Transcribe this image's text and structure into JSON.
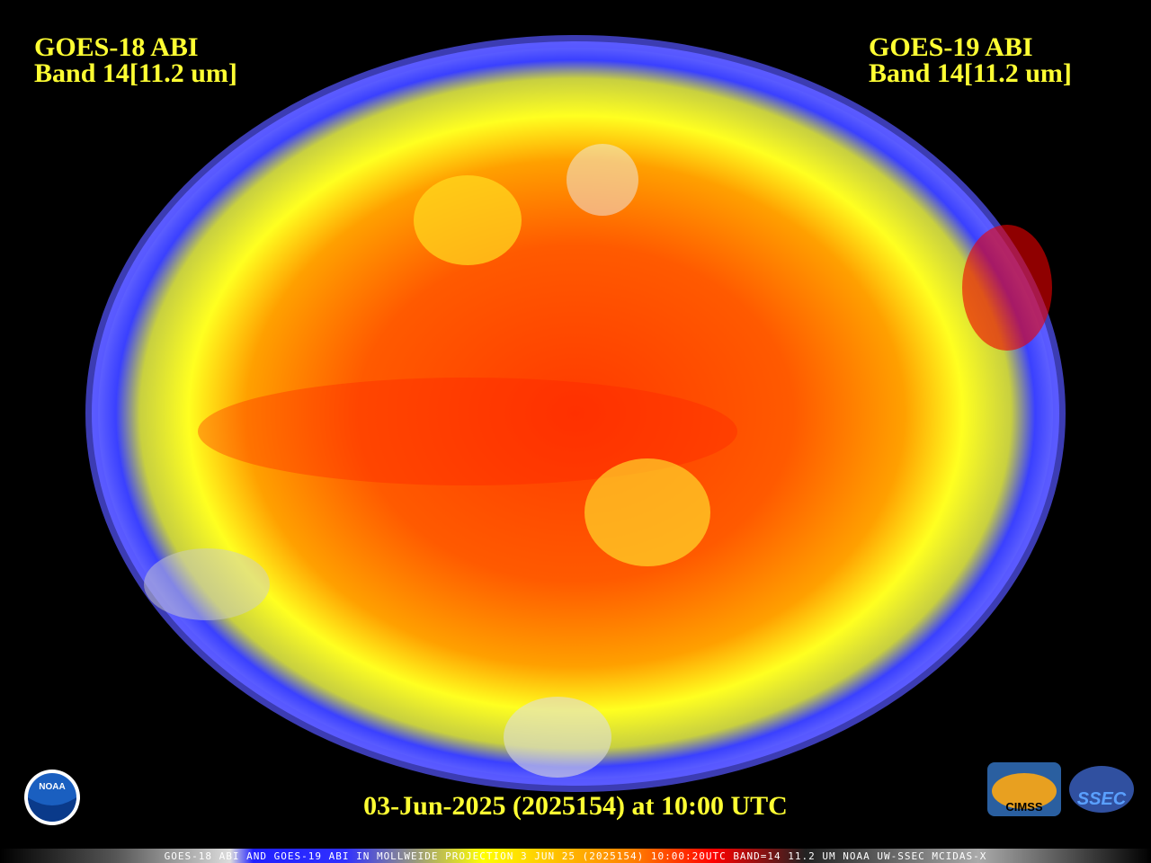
{
  "header": {
    "left": {
      "satellite": "GOES-18 ABI",
      "band": "Band 14[11.2 um]"
    },
    "right": {
      "satellite": "GOES-19 ABI",
      "band": "Band 14[11.2 um]"
    }
  },
  "footer": {
    "timestamp": "03-Jun-2025 (2025154) at 10:00 UTC",
    "caption": "GOES-18 ABI AND GOES-19 ABI IN MOLLWEIDE PROJECTION 3 JUN 25 (2025154) 10:00:20UTC BAND=14 11.2 UM NOAA UW-SSEC MCIDAS-X"
  },
  "logos": {
    "noaa": "NOAA",
    "cimss": "CIMSS",
    "ssec": "SSEC"
  }
}
